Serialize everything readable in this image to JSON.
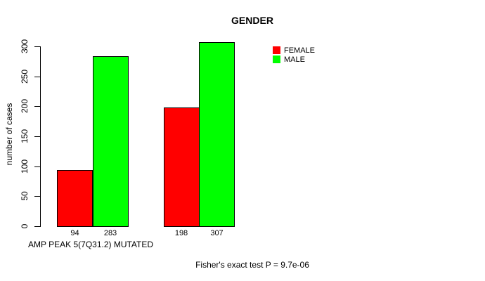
{
  "title": "GENDER",
  "y_axis": {
    "label": "number of cases",
    "ticks": [
      0,
      50,
      100,
      150,
      200,
      250,
      300
    ]
  },
  "x_axis": {
    "label": "AMP PEAK 5(7Q31.2) MUTATED"
  },
  "legend": {
    "items": [
      {
        "label": "FEMALE",
        "color": "#ff0000"
      },
      {
        "label": "MALE",
        "color": "#00ff00"
      }
    ]
  },
  "annotation": {
    "text": "Fisher's exact test P = 9.7e-06"
  },
  "chart_data": {
    "type": "bar",
    "title": "GENDER",
    "xlabel": "AMP PEAK 5(7Q31.2) MUTATED",
    "ylabel": "number of cases",
    "ylim": [
      0,
      300
    ],
    "yticks": [
      0,
      50,
      100,
      150,
      200,
      250,
      300
    ],
    "categories": [
      "",
      ""
    ],
    "series": [
      {
        "name": "FEMALE",
        "color": "#ff0000",
        "values": [
          94,
          198
        ]
      },
      {
        "name": "MALE",
        "color": "#00ff00",
        "values": [
          283,
          307
        ]
      }
    ],
    "bar_value_labels": [
      [
        94,
        283
      ],
      [
        198,
        307
      ]
    ],
    "legend_position": "top-right",
    "grid": false,
    "stat_annotation": "Fisher's exact test P = 9.7e-06"
  }
}
